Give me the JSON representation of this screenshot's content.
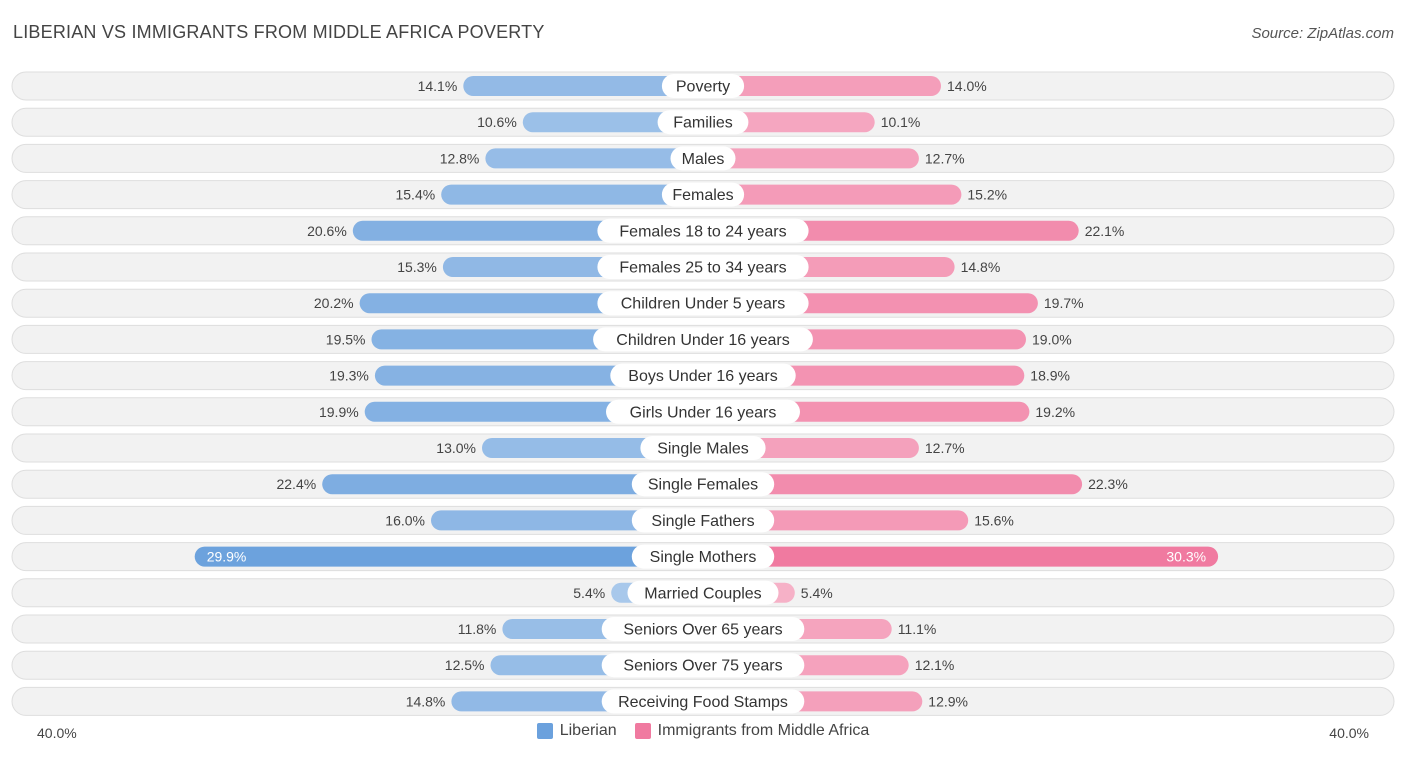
{
  "header": {
    "title": "LIBERIAN VS IMMIGRANTS FROM MIDDLE AFRICA POVERTY",
    "source": "Source: ZipAtlas.com"
  },
  "colors": {
    "liberian": "#6ba1dd",
    "immigrants": "#f07aa0"
  },
  "chart_data": {
    "type": "bar",
    "orientation": "horizontal-diverging",
    "title": "LIBERIAN VS IMMIGRANTS FROM MIDDLE AFRICA POVERTY",
    "xlim": [
      -40,
      40
    ],
    "axis_left_label": "40.0%",
    "axis_right_label": "40.0%",
    "categories": [
      "Poverty",
      "Families",
      "Males",
      "Females",
      "Females 18 to 24 years",
      "Females 25 to 34 years",
      "Children Under 5 years",
      "Children Under 16 years",
      "Boys Under 16 years",
      "Girls Under 16 years",
      "Single Males",
      "Single Females",
      "Single Fathers",
      "Single Mothers",
      "Married Couples",
      "Seniors Over 65 years",
      "Seniors Over 75 years",
      "Receiving Food Stamps"
    ],
    "series": [
      {
        "name": "Liberian",
        "values": [
          14.1,
          10.6,
          12.8,
          15.4,
          20.6,
          15.3,
          20.2,
          19.5,
          19.3,
          19.9,
          13.0,
          22.4,
          16.0,
          29.9,
          5.4,
          11.8,
          12.5,
          14.8
        ],
        "labels": [
          "14.1%",
          "10.6%",
          "12.8%",
          "15.4%",
          "20.6%",
          "15.3%",
          "20.2%",
          "19.5%",
          "19.3%",
          "19.9%",
          "13.0%",
          "22.4%",
          "16.0%",
          "29.9%",
          "5.4%",
          "11.8%",
          "12.5%",
          "14.8%"
        ]
      },
      {
        "name": "Immigrants from Middle Africa",
        "values": [
          14.0,
          10.1,
          12.7,
          15.2,
          22.1,
          14.8,
          19.7,
          19.0,
          18.9,
          19.2,
          12.7,
          22.3,
          15.6,
          30.3,
          5.4,
          11.1,
          12.1,
          12.9
        ],
        "labels": [
          "14.0%",
          "10.1%",
          "12.7%",
          "15.2%",
          "22.1%",
          "14.8%",
          "19.7%",
          "19.0%",
          "18.9%",
          "19.2%",
          "12.7%",
          "22.3%",
          "15.6%",
          "30.3%",
          "5.4%",
          "11.1%",
          "12.1%",
          "12.9%"
        ]
      }
    ],
    "legend": [
      "Liberian",
      "Immigrants from Middle Africa"
    ],
    "legend_position": "bottom-center"
  }
}
